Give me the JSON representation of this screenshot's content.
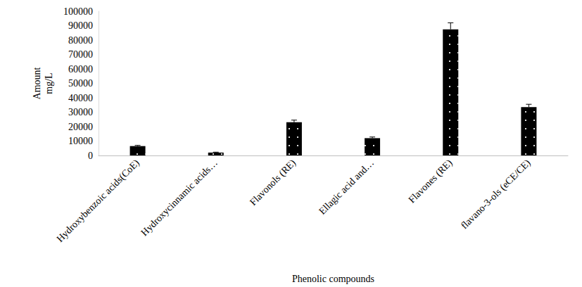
{
  "chart_data": {
    "type": "bar",
    "categories": [
      "Hydroxybenzoic acids(CoE)",
      "Hydroxycinnamic acids…",
      "Flavonols (RE)",
      "Ellagic acid and…",
      "Flavones (RE)",
      "flavano-3-ols (eCE/CE)"
    ],
    "values": [
      6500,
      2000,
      23000,
      12000,
      87500,
      33500
    ],
    "errors": [
      500,
      300,
      1500,
      800,
      4500,
      2000
    ],
    "color": "#000000",
    "xlabel": "Phenolic compounds",
    "ylabel": "Amount\nmg/L",
    "ylim": [
      0,
      100000
    ],
    "yticks": [
      0,
      10000,
      20000,
      30000,
      40000,
      50000,
      60000,
      70000,
      80000,
      90000,
      100000
    ],
    "grid": false
  }
}
